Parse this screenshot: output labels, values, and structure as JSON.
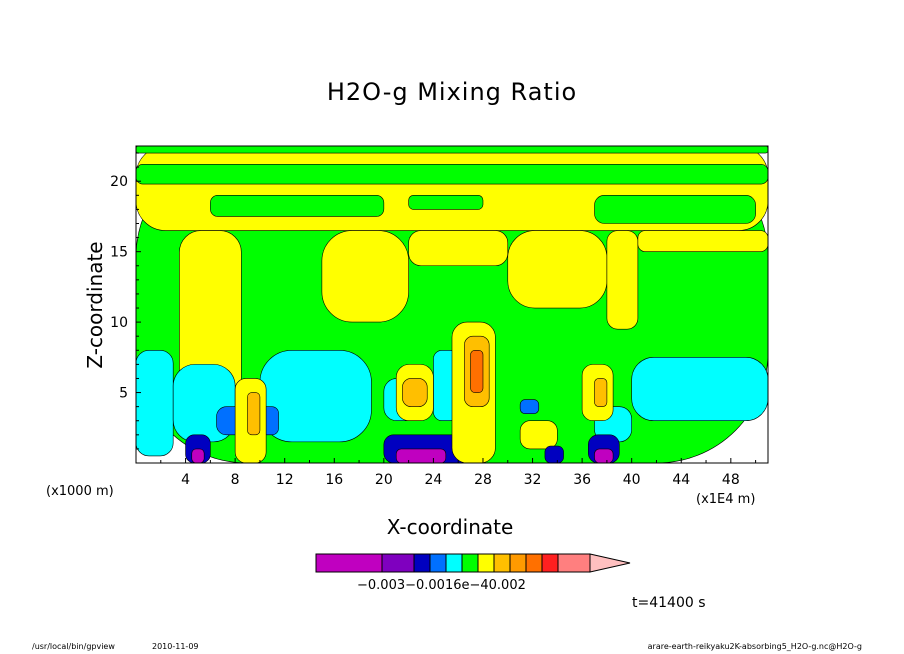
{
  "chart_data": {
    "type": "heatmap",
    "title": "H2O-g Mixing Ratio",
    "xlabel": "X-coordinate",
    "ylabel": "Z-coordinate",
    "x_unit_left": "(x1000 m)",
    "x_unit_right": "(x1E4 m)",
    "xticks": [
      "4",
      "8",
      "12",
      "16",
      "20",
      "24",
      "28",
      "32",
      "36",
      "40",
      "44",
      "48"
    ],
    "yticks": [
      "5",
      "10",
      "15",
      "20"
    ],
    "xlim": [
      0,
      51
    ],
    "ylim": [
      0,
      22.5
    ],
    "colorbar": {
      "colors": [
        "#c000c0",
        "#7f00bf",
        "#0000c0",
        "#0070ff",
        "#00ffff",
        "#00ff00",
        "#ffff00",
        "#ffbf00",
        "#ff9a00",
        "#ff7000",
        "#ff2020",
        "#ff7f7f",
        "#ffc0c0"
      ],
      "label_text": "−0.003−0.0016e−40.002"
    },
    "regions": [
      {
        "level": "green",
        "x0": 0,
        "x1": 51,
        "z0": 0,
        "z1": 22.5
      },
      {
        "level": "yellow",
        "x0": 0,
        "x1": 51,
        "z0": 16.5,
        "z1": 22.5
      },
      {
        "level": "yellow",
        "x0": 3.5,
        "x1": 8.5,
        "z0": 4,
        "z1": 16.5
      },
      {
        "level": "yellow",
        "x0": 15,
        "x1": 22,
        "z0": 10,
        "z1": 16.5
      },
      {
        "level": "yellow",
        "x0": 22,
        "x1": 30,
        "z0": 14,
        "z1": 16.5
      },
      {
        "level": "yellow",
        "x0": 30,
        "x1": 38,
        "z0": 11,
        "z1": 16.5
      },
      {
        "level": "yellow",
        "x0": 38,
        "x1": 40.5,
        "z0": 9.5,
        "z1": 16.5
      },
      {
        "level": "yellow",
        "x0": 40.5,
        "x1": 51,
        "z0": 15,
        "z1": 16.5
      },
      {
        "level": "green",
        "x0": 0,
        "x1": 51,
        "z0": 19.8,
        "z1": 21.2
      },
      {
        "level": "green",
        "x0": 6,
        "x1": 20,
        "z0": 17.5,
        "z1": 19
      },
      {
        "level": "green",
        "x0": 22,
        "x1": 28,
        "z0": 18,
        "z1": 19
      },
      {
        "level": "green",
        "x0": 37,
        "x1": 50,
        "z0": 17,
        "z1": 19
      },
      {
        "level": "green",
        "x0": 0,
        "x1": 51,
        "z0": 22,
        "z1": 22.5
      },
      {
        "level": "cyan",
        "x0": 0,
        "x1": 3,
        "z0": 0.5,
        "z1": 8
      },
      {
        "level": "cyan",
        "x0": 3,
        "x1": 8,
        "z0": 1.5,
        "z1": 7
      },
      {
        "level": "cyan",
        "x0": 10,
        "x1": 19,
        "z0": 1.5,
        "z1": 8
      },
      {
        "level": "cyan",
        "x0": 20,
        "x1": 23,
        "z0": 3,
        "z1": 6
      },
      {
        "level": "cyan",
        "x0": 24,
        "x1": 26,
        "z0": 3,
        "z1": 8
      },
      {
        "level": "cyan",
        "x0": 40,
        "x1": 51,
        "z0": 3,
        "z1": 7.5
      },
      {
        "level": "cyan",
        "x0": 37,
        "x1": 40,
        "z0": 1.5,
        "z1": 4
      },
      {
        "level": "blue",
        "x0": 6.5,
        "x1": 9,
        "z0": 2,
        "z1": 4
      },
      {
        "level": "blue",
        "x0": 10,
        "x1": 11.5,
        "z0": 2,
        "z1": 4
      },
      {
        "level": "blue",
        "x0": 31,
        "x1": 32.5,
        "z0": 3.5,
        "z1": 4.5
      },
      {
        "level": "navy",
        "x0": 4,
        "x1": 6,
        "z0": 0,
        "z1": 2
      },
      {
        "level": "navy",
        "x0": 20,
        "x1": 28,
        "z0": 0,
        "z1": 2
      },
      {
        "level": "navy",
        "x0": 36.5,
        "x1": 39,
        "z0": 0,
        "z1": 2
      },
      {
        "level": "purple",
        "x0": 4.5,
        "x1": 5.5,
        "z0": 0,
        "z1": 1
      },
      {
        "level": "purple",
        "x0": 21,
        "x1": 25,
        "z0": 0,
        "z1": 1
      },
      {
        "level": "purple",
        "x0": 37,
        "x1": 38.5,
        "z0": 0,
        "z1": 1
      },
      {
        "level": "yellow",
        "x0": 8,
        "x1": 10.5,
        "z0": 0,
        "z1": 6
      },
      {
        "level": "yellow",
        "x0": 21,
        "x1": 24,
        "z0": 3,
        "z1": 7
      },
      {
        "level": "yellow",
        "x0": 25.5,
        "x1": 29,
        "z0": 0,
        "z1": 10
      },
      {
        "level": "yellow",
        "x0": 31,
        "x1": 34,
        "z0": 1,
        "z1": 3
      },
      {
        "level": "yellow",
        "x0": 36,
        "x1": 38.5,
        "z0": 3,
        "z1": 7
      },
      {
        "level": "orange",
        "x0": 9,
        "x1": 10,
        "z0": 2,
        "z1": 5
      },
      {
        "level": "orange",
        "x0": 21.5,
        "x1": 23.5,
        "z0": 4,
        "z1": 6
      },
      {
        "level": "orange",
        "x0": 26.5,
        "x1": 28.5,
        "z0": 4,
        "z1": 9
      },
      {
        "level": "orange",
        "x0": 37,
        "x1": 38,
        "z0": 4,
        "z1": 6
      },
      {
        "level": "darkorange",
        "x0": 27,
        "x1": 28,
        "z0": 5,
        "z1": 8
      },
      {
        "level": "navy",
        "x0": 33,
        "x1": 34.5,
        "z0": 0,
        "z1": 1.2
      }
    ],
    "level_colors": {
      "purple": "#c000c0",
      "navy": "#0000c0",
      "blue": "#0070ff",
      "cyan": "#00ffff",
      "green": "#00ff00",
      "yellow": "#ffff00",
      "orange": "#ffbf00",
      "darkorange": "#ff7000"
    }
  },
  "footer": {
    "time": "t=41400 s",
    "path": "/usr/local/bin/gpview",
    "date": "2010-11-09",
    "file": "arare-earth-reikyaku2K-absorbing5_H2O-g.nc@H2O-g"
  }
}
